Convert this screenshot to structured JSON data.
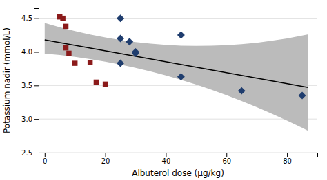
{
  "chart_data": {
    "type": "scatter",
    "xlabel": "Albuterol dose (μg/kg)",
    "ylabel": "Potassium nadir (mmol/L)",
    "xlim": [
      -2,
      90
    ],
    "ylim": [
      2.5,
      4.65
    ],
    "xticks": [
      0,
      20,
      40,
      60,
      80
    ],
    "yticks": [
      2.5,
      {
        "value": 3.0,
        "label": "3.0"
      },
      3.5,
      {
        "value": 4.0,
        "label": "4.0"
      },
      4.5
    ],
    "grid": true,
    "series": [
      {
        "type": "area",
        "color": "#bbbbbb",
        "x": [
          0,
          5,
          10,
          15,
          20,
          25,
          30,
          35,
          40,
          45,
          50,
          55,
          60,
          65,
          70,
          75,
          80,
          85,
          87
        ],
        "upper": [
          4.4308,
          4.3669,
          4.3096,
          4.2589,
          4.2148,
          4.1773,
          4.1464,
          4.1221,
          4.1044,
          4.0933,
          4.0888,
          4.0908,
          4.0995,
          4.1148,
          4.1367,
          4.1652,
          4.2003,
          4.242,
          4.2605
        ],
        "lower": [
          3.9748,
          3.9529,
          3.9256,
          3.8929,
          3.8548,
          3.8113,
          3.7624,
          3.7081,
          3.6484,
          3.5833,
          3.5128,
          3.4368,
          3.3555,
          3.2688,
          3.1767,
          3.0792,
          2.9763,
          2.868,
          2.8232
        ]
      },
      {
        "type": "line",
        "color": "#000000",
        "x": [
          0,
          87
        ],
        "values": [
          4.18,
          3.47
        ]
      },
      {
        "type": "scatter",
        "marker": "diamond",
        "color": "#1f3d6e",
        "x": [
          25,
          25,
          28,
          30,
          30,
          25,
          45,
          45,
          65,
          85
        ],
        "values": [
          4.5,
          4.2,
          4.15,
          4.0,
          3.98,
          3.83,
          4.25,
          3.63,
          3.42,
          3.35
        ]
      },
      {
        "type": "scatter",
        "marker": "square",
        "color": "#8b1a1a",
        "x": [
          5,
          6,
          7,
          7,
          8,
          10,
          15,
          17,
          20
        ],
        "values": [
          4.52,
          4.5,
          4.38,
          4.06,
          3.98,
          3.83,
          3.84,
          3.55,
          3.52
        ]
      }
    ]
  }
}
